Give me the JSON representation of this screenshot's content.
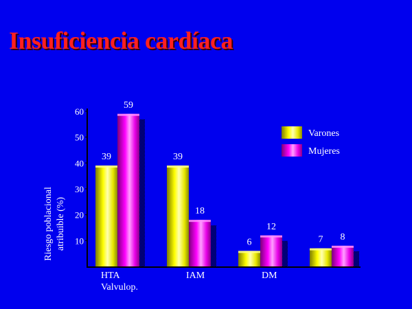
{
  "slide": {
    "title": "Insuficiencia cardíaca"
  },
  "chart_data": {
    "type": "bar",
    "title": "Insuficiencia cardíaca",
    "categories": [
      "HTA",
      "IAM",
      "DM",
      ""
    ],
    "category_labels": [
      [
        "HTA",
        "Valvulop."
      ],
      [
        "IAM"
      ],
      [
        "DM"
      ],
      [
        ""
      ]
    ],
    "series": [
      {
        "name": "Varones",
        "values": [
          39,
          39,
          6,
          7
        ]
      },
      {
        "name": "Mujeres",
        "values": [
          59,
          18,
          12,
          8
        ]
      }
    ],
    "ylabel_lines": [
      "Riesgo poblacional",
      "atribuible (%)"
    ],
    "xlabel": "",
    "ylim": [
      0,
      60
    ],
    "yticks": [
      10,
      20,
      30,
      40,
      50,
      60
    ],
    "grid": false,
    "legend_position": "right",
    "colors": {
      "background": "#0000ee",
      "title": "#ff2020",
      "varones": "#ffff00",
      "mujeres": "#ff00ff",
      "text": "#ffffff",
      "axis": "#000000"
    }
  }
}
